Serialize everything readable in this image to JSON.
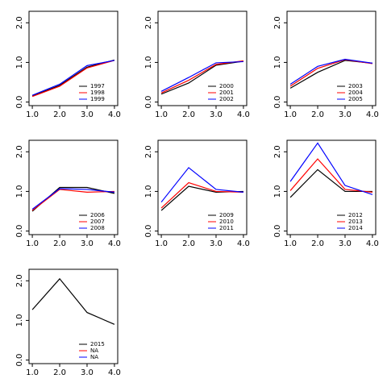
{
  "chart_data": [
    {
      "type": "line",
      "x": [
        1,
        2,
        3,
        4
      ],
      "xlim": [
        0.88,
        4.12
      ],
      "ylim": [
        -0.09,
        2.29
      ],
      "xticks": [
        {
          "value": 1,
          "label": "1.0"
        },
        {
          "value": 2,
          "label": "2.0"
        },
        {
          "value": 3,
          "label": "3.0"
        },
        {
          "value": 4,
          "label": "4.0"
        }
      ],
      "yticks": [
        {
          "value": 0,
          "label": "0.0"
        },
        {
          "value": 1,
          "label": "1.0"
        },
        {
          "value": 2,
          "label": "2.0"
        }
      ],
      "legend": "bottom-right",
      "series": [
        {
          "name": "1997",
          "color": "#000000",
          "values": [
            0.15,
            0.42,
            0.88,
            1.06
          ]
        },
        {
          "name": "1998",
          "color": "#ff0000",
          "values": [
            0.14,
            0.4,
            0.86,
            1.05
          ]
        },
        {
          "name": "1999",
          "color": "#0000ff",
          "values": [
            0.17,
            0.45,
            0.92,
            1.05
          ]
        }
      ]
    },
    {
      "type": "line",
      "x": [
        1,
        2,
        3,
        4
      ],
      "xlim": [
        0.88,
        4.12
      ],
      "ylim": [
        -0.09,
        2.29
      ],
      "xticks": [
        {
          "value": 1,
          "label": "1.0"
        },
        {
          "value": 2,
          "label": "2.0"
        },
        {
          "value": 3,
          "label": "3.0"
        },
        {
          "value": 4,
          "label": "4.0"
        }
      ],
      "yticks": [
        {
          "value": 0,
          "label": "0.0"
        },
        {
          "value": 1,
          "label": "1.0"
        },
        {
          "value": 2,
          "label": "2.0"
        }
      ],
      "legend": "bottom-right",
      "series": [
        {
          "name": "2000",
          "color": "#000000",
          "values": [
            0.2,
            0.48,
            0.93,
            1.03
          ]
        },
        {
          "name": "2001",
          "color": "#ff0000",
          "values": [
            0.23,
            0.55,
            0.95,
            1.04
          ]
        },
        {
          "name": "2002",
          "color": "#0000ff",
          "values": [
            0.27,
            0.62,
            0.99,
            1.02
          ]
        }
      ]
    },
    {
      "type": "line",
      "x": [
        1,
        2,
        3,
        4
      ],
      "xlim": [
        0.88,
        4.12
      ],
      "ylim": [
        -0.09,
        2.29
      ],
      "xticks": [
        {
          "value": 1,
          "label": "1.0"
        },
        {
          "value": 2,
          "label": "2.0"
        },
        {
          "value": 3,
          "label": "3.0"
        },
        {
          "value": 4,
          "label": "4.0"
        }
      ],
      "yticks": [
        {
          "value": 0,
          "label": "0.0"
        },
        {
          "value": 1,
          "label": "1.0"
        },
        {
          "value": 2,
          "label": "2.0"
        }
      ],
      "legend": "bottom-right",
      "series": [
        {
          "name": "2003",
          "color": "#000000",
          "values": [
            0.35,
            0.75,
            1.05,
            0.98
          ]
        },
        {
          "name": "2004",
          "color": "#ff0000",
          "values": [
            0.4,
            0.85,
            1.07,
            0.97
          ]
        },
        {
          "name": "2005",
          "color": "#0000ff",
          "values": [
            0.45,
            0.9,
            1.08,
            0.98
          ]
        }
      ]
    },
    {
      "type": "line",
      "x": [
        1,
        2,
        3,
        4
      ],
      "xlim": [
        0.88,
        4.12
      ],
      "ylim": [
        -0.09,
        2.29
      ],
      "xticks": [
        {
          "value": 1,
          "label": "1.0"
        },
        {
          "value": 2,
          "label": "2.0"
        },
        {
          "value": 3,
          "label": "3.0"
        },
        {
          "value": 4,
          "label": "4.0"
        }
      ],
      "yticks": [
        {
          "value": 0,
          "label": "0.0"
        },
        {
          "value": 1,
          "label": "1.0"
        },
        {
          "value": 2,
          "label": "2.0"
        }
      ],
      "legend": "bottom-right",
      "series": [
        {
          "name": "2006",
          "color": "#000000",
          "values": [
            0.5,
            1.1,
            1.1,
            0.95
          ]
        },
        {
          "name": "2007",
          "color": "#ff0000",
          "values": [
            0.52,
            1.05,
            0.98,
            1.0
          ]
        },
        {
          "name": "2008",
          "color": "#0000ff",
          "values": [
            0.55,
            1.07,
            1.05,
            0.98
          ]
        }
      ]
    },
    {
      "type": "line",
      "x": [
        1,
        2,
        3,
        4
      ],
      "xlim": [
        0.88,
        4.12
      ],
      "ylim": [
        -0.09,
        2.29
      ],
      "xticks": [
        {
          "value": 1,
          "label": "1.0"
        },
        {
          "value": 2,
          "label": "2.0"
        },
        {
          "value": 3,
          "label": "3.0"
        },
        {
          "value": 4,
          "label": "4.0"
        }
      ],
      "yticks": [
        {
          "value": 0,
          "label": "0.0"
        },
        {
          "value": 1,
          "label": "1.0"
        },
        {
          "value": 2,
          "label": "2.0"
        }
      ],
      "legend": "bottom-right",
      "series": [
        {
          "name": "2009",
          "color": "#000000",
          "values": [
            0.52,
            1.13,
            0.98,
            1.0
          ]
        },
        {
          "name": "2010",
          "color": "#ff0000",
          "values": [
            0.58,
            1.22,
            1.0,
            0.98
          ]
        },
        {
          "name": "2011",
          "color": "#0000ff",
          "values": [
            0.73,
            1.6,
            1.05,
            0.98
          ]
        }
      ]
    },
    {
      "type": "line",
      "x": [
        1,
        2,
        3,
        4
      ],
      "xlim": [
        0.88,
        4.12
      ],
      "ylim": [
        -0.09,
        2.29
      ],
      "xticks": [
        {
          "value": 1,
          "label": "1.0"
        },
        {
          "value": 2,
          "label": "2.0"
        },
        {
          "value": 3,
          "label": "3.0"
        },
        {
          "value": 4,
          "label": "4.0"
        }
      ],
      "yticks": [
        {
          "value": 0,
          "label": "0.0"
        },
        {
          "value": 1,
          "label": "1.0"
        },
        {
          "value": 2,
          "label": "2.0"
        }
      ],
      "legend": "bottom-right",
      "series": [
        {
          "name": "2012",
          "color": "#000000",
          "values": [
            0.85,
            1.55,
            1.0,
            1.0
          ]
        },
        {
          "name": "2013",
          "color": "#ff0000",
          "values": [
            1.02,
            1.82,
            1.05,
            0.98
          ]
        },
        {
          "name": "2014",
          "color": "#0000ff",
          "values": [
            1.25,
            2.22,
            1.15,
            0.92
          ]
        }
      ]
    },
    {
      "type": "line",
      "x": [
        1,
        2,
        3,
        4
      ],
      "xlim": [
        0.88,
        4.12
      ],
      "ylim": [
        -0.09,
        2.29
      ],
      "xticks": [
        {
          "value": 1,
          "label": "1.0"
        },
        {
          "value": 2,
          "label": "2.0"
        },
        {
          "value": 3,
          "label": "3.0"
        },
        {
          "value": 4,
          "label": "4.0"
        }
      ],
      "yticks": [
        {
          "value": 0,
          "label": "0.0"
        },
        {
          "value": 1,
          "label": "1.0"
        },
        {
          "value": 2,
          "label": "2.0"
        }
      ],
      "legend": "bottom-right",
      "series": [
        {
          "name": "2015",
          "color": "#000000",
          "values": [
            1.27,
            2.05,
            1.2,
            0.9
          ]
        },
        {
          "name": "NA",
          "color": "#ff0000",
          "values": [
            null,
            null,
            null,
            null
          ]
        },
        {
          "name": "NA",
          "color": "#0000ff",
          "values": [
            null,
            null,
            null,
            null
          ]
        }
      ]
    }
  ]
}
